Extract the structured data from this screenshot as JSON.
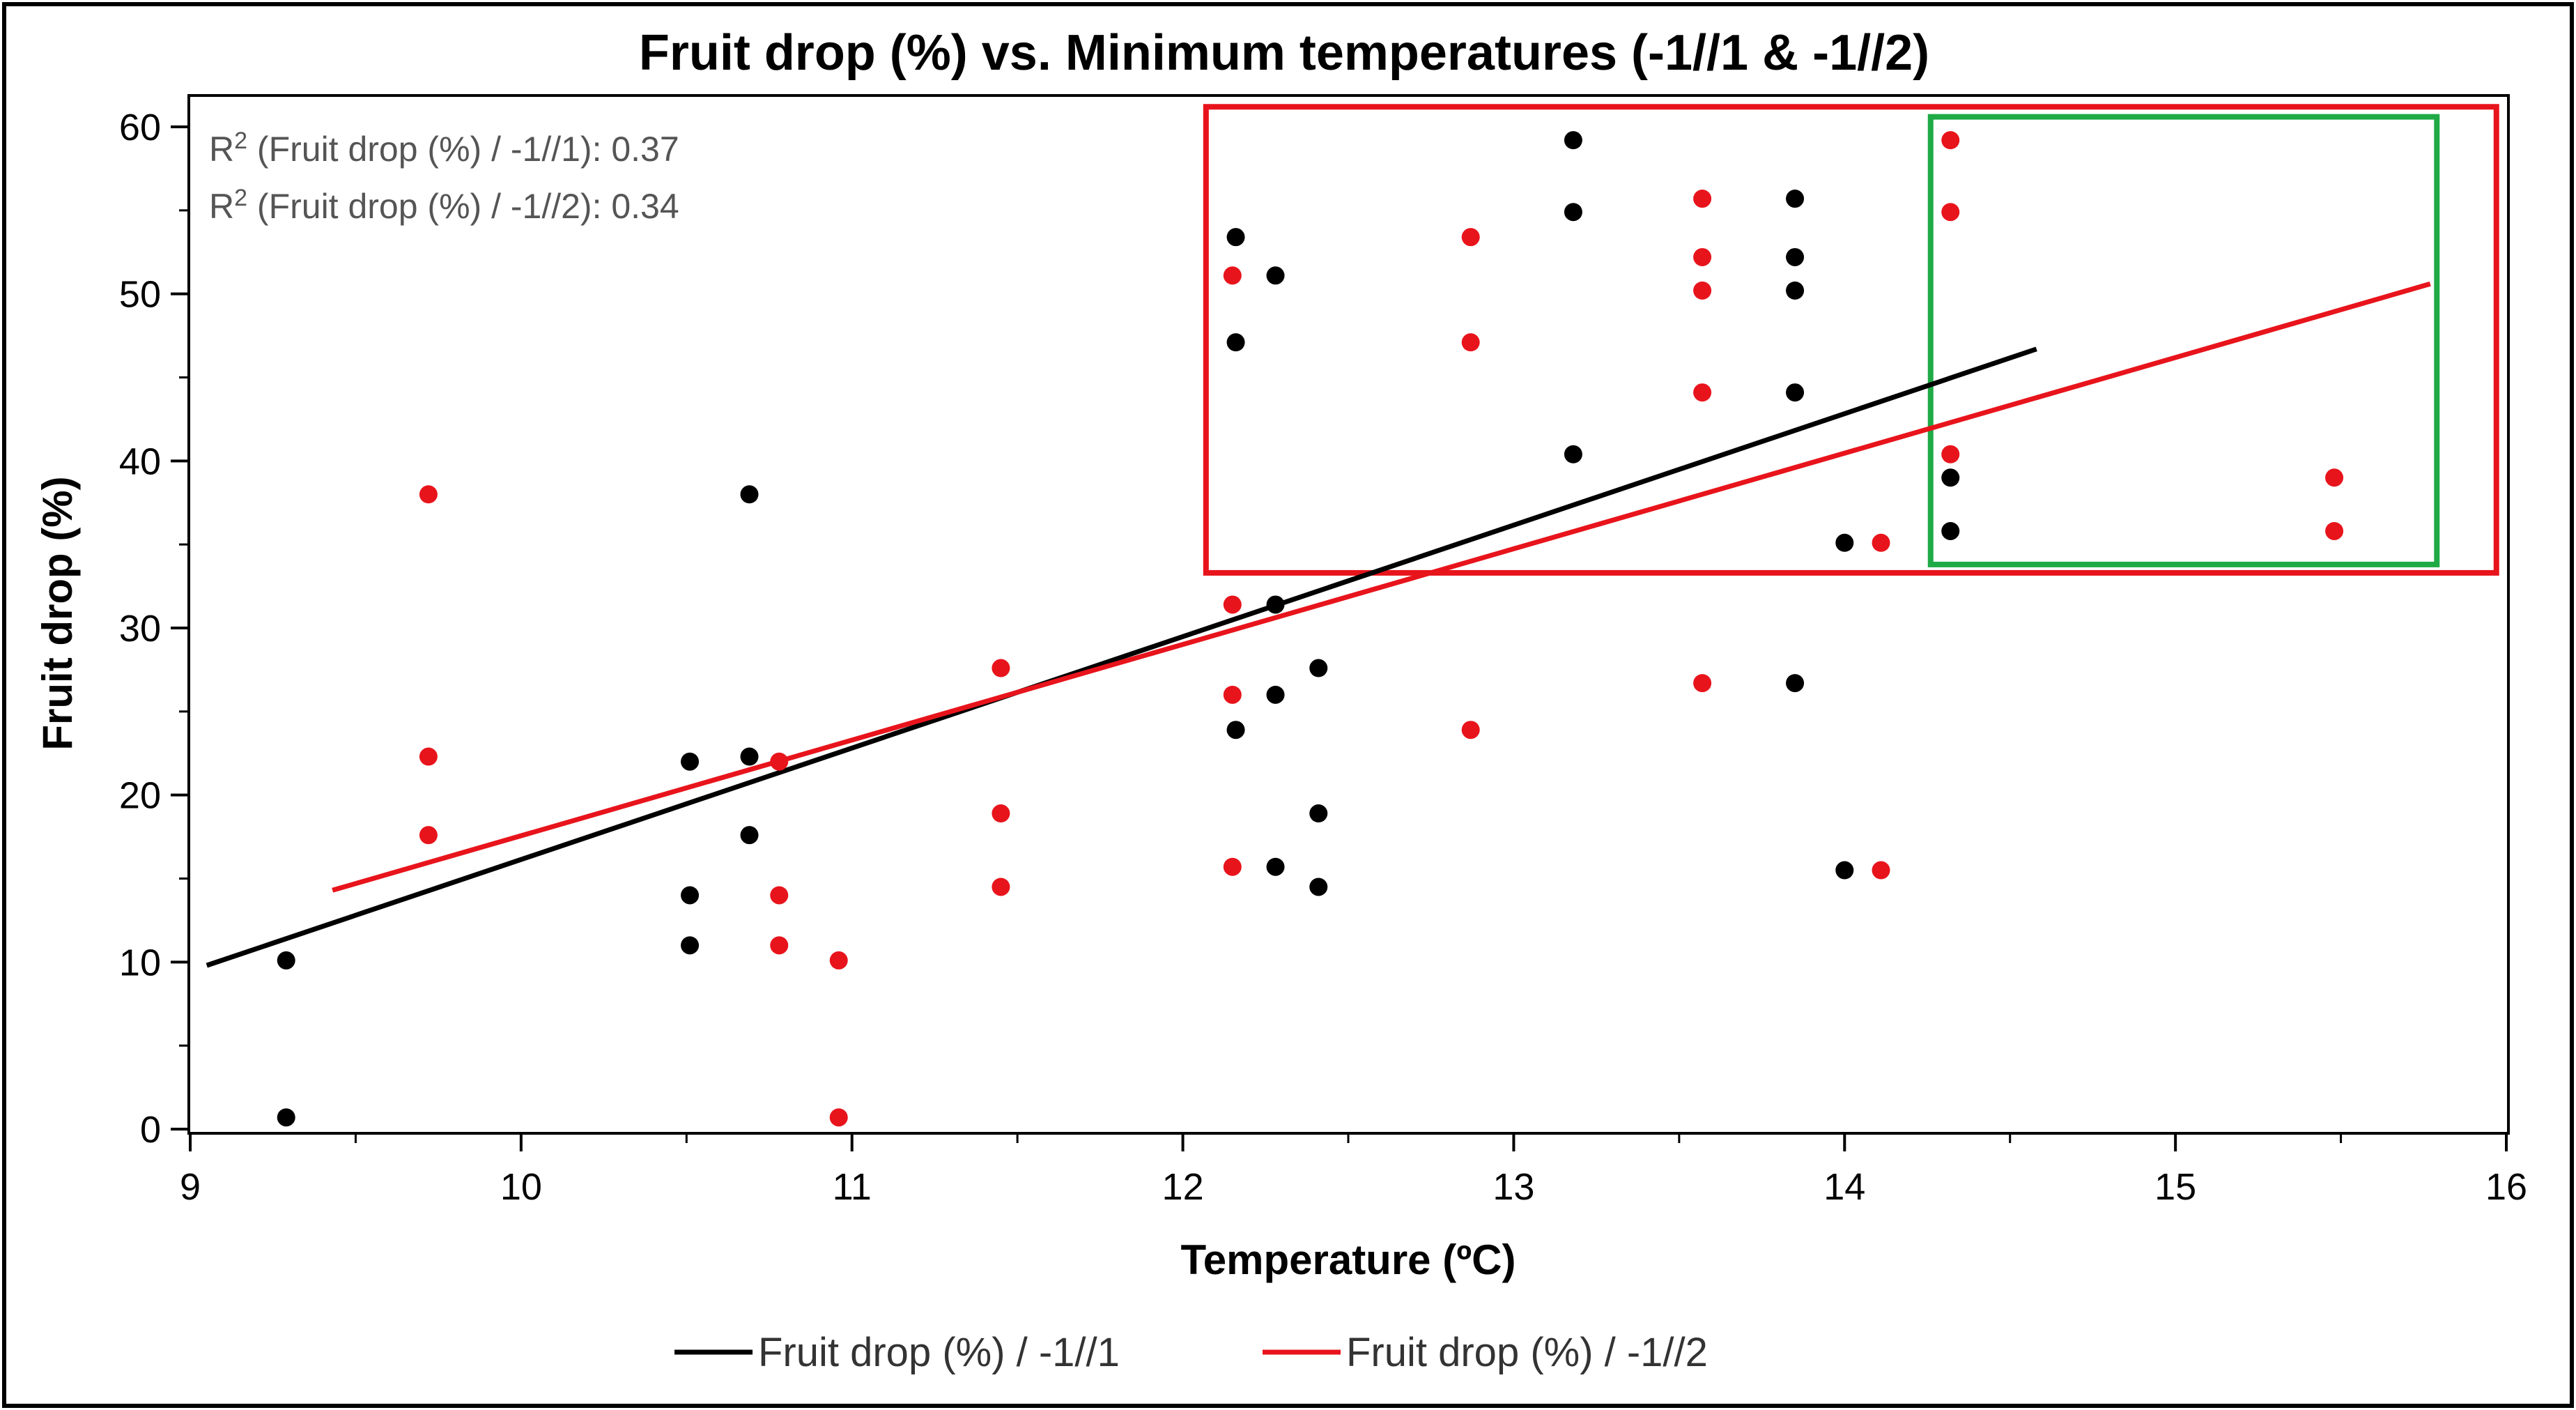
{
  "chart_data": {
    "type": "scatter",
    "title": "Fruit drop (%) vs. Minimum temperatures (-1//1 & -1//2)",
    "xlabel": "Temperature (ºC)",
    "ylabel": "Fruit drop (%)",
    "xlim": [
      9,
      16
    ],
    "ylim": [
      0,
      60
    ],
    "x_ticks": [
      "9",
      "10",
      "11",
      "12",
      "13",
      "14",
      "15",
      "16"
    ],
    "y_ticks": [
      "0",
      "10",
      "20",
      "30",
      "40",
      "50",
      "60"
    ],
    "grid": false,
    "legend_position": "bottom",
    "annotations": [
      {
        "prefix": "R",
        "sup": "2",
        "text": " (Fruit drop (%) / -1//1): 0.37"
      },
      {
        "prefix": "R",
        "sup": "2",
        "text": " (Fruit drop (%) / -1//2): 0.34"
      }
    ],
    "highlight_boxes": [
      {
        "color": "#e8141c",
        "x_range": [
          12.07,
          15.97
        ],
        "y_range": [
          33.3,
          61.2
        ]
      },
      {
        "color": "#1faa46",
        "x_range": [
          14.26,
          15.79
        ],
        "y_range": [
          33.8,
          60.6
        ]
      }
    ],
    "series": [
      {
        "name": "Fruit drop (%) / -1//1",
        "color": "#000000",
        "points": [
          {
            "x": 9.29,
            "y": 10.1
          },
          {
            "x": 9.29,
            "y": 0.7
          },
          {
            "x": 10.51,
            "y": 22.0
          },
          {
            "x": 10.51,
            "y": 14.0
          },
          {
            "x": 10.51,
            "y": 11.0
          },
          {
            "x": 10.69,
            "y": 38.0
          },
          {
            "x": 10.69,
            "y": 22.3
          },
          {
            "x": 10.69,
            "y": 17.6
          },
          {
            "x": 12.16,
            "y": 53.4
          },
          {
            "x": 12.16,
            "y": 47.1
          },
          {
            "x": 12.16,
            "y": 23.9
          },
          {
            "x": 12.28,
            "y": 51.1
          },
          {
            "x": 12.28,
            "y": 31.4
          },
          {
            "x": 12.28,
            "y": 26.0
          },
          {
            "x": 12.28,
            "y": 15.7
          },
          {
            "x": 12.41,
            "y": 27.6
          },
          {
            "x": 12.41,
            "y": 18.9
          },
          {
            "x": 12.41,
            "y": 14.5
          },
          {
            "x": 13.18,
            "y": 59.2
          },
          {
            "x": 13.18,
            "y": 54.9
          },
          {
            "x": 13.18,
            "y": 40.4
          },
          {
            "x": 13.85,
            "y": 55.7
          },
          {
            "x": 13.85,
            "y": 52.2
          },
          {
            "x": 13.85,
            "y": 50.2
          },
          {
            "x": 13.85,
            "y": 44.1
          },
          {
            "x": 13.85,
            "y": 26.7
          },
          {
            "x": 14.0,
            "y": 35.1
          },
          {
            "x": 14.0,
            "y": 15.5
          },
          {
            "x": 14.32,
            "y": 39.0
          },
          {
            "x": 14.32,
            "y": 35.8
          }
        ],
        "fit_line": {
          "x": [
            9.05,
            14.58
          ],
          "y": [
            9.8,
            46.7
          ]
        }
      },
      {
        "name": "Fruit drop (%) / -1//2",
        "color": "#e8141c",
        "points": [
          {
            "x": 9.72,
            "y": 38.0
          },
          {
            "x": 9.72,
            "y": 22.3
          },
          {
            "x": 9.72,
            "y": 17.6
          },
          {
            "x": 10.78,
            "y": 22.0
          },
          {
            "x": 10.78,
            "y": 14.0
          },
          {
            "x": 10.78,
            "y": 11.0
          },
          {
            "x": 10.96,
            "y": 10.1
          },
          {
            "x": 10.96,
            "y": 0.7
          },
          {
            "x": 11.45,
            "y": 27.6
          },
          {
            "x": 11.45,
            "y": 18.9
          },
          {
            "x": 11.45,
            "y": 14.5
          },
          {
            "x": 12.15,
            "y": 51.1
          },
          {
            "x": 12.15,
            "y": 31.4
          },
          {
            "x": 12.15,
            "y": 26.0
          },
          {
            "x": 12.15,
            "y": 15.7
          },
          {
            "x": 12.87,
            "y": 53.4
          },
          {
            "x": 12.87,
            "y": 47.1
          },
          {
            "x": 12.87,
            "y": 23.9
          },
          {
            "x": 13.57,
            "y": 55.7
          },
          {
            "x": 13.57,
            "y": 52.2
          },
          {
            "x": 13.57,
            "y": 50.2
          },
          {
            "x": 13.57,
            "y": 44.1
          },
          {
            "x": 13.57,
            "y": 26.7
          },
          {
            "x": 14.11,
            "y": 35.1
          },
          {
            "x": 14.11,
            "y": 15.5
          },
          {
            "x": 14.32,
            "y": 59.2
          },
          {
            "x": 14.32,
            "y": 54.9
          },
          {
            "x": 14.32,
            "y": 40.4
          },
          {
            "x": 15.48,
            "y": 39.0
          },
          {
            "x": 15.48,
            "y": 35.8
          }
        ],
        "fit_line": {
          "x": [
            9.43,
            15.77
          ],
          "y": [
            14.3,
            50.6
          ]
        }
      }
    ]
  }
}
